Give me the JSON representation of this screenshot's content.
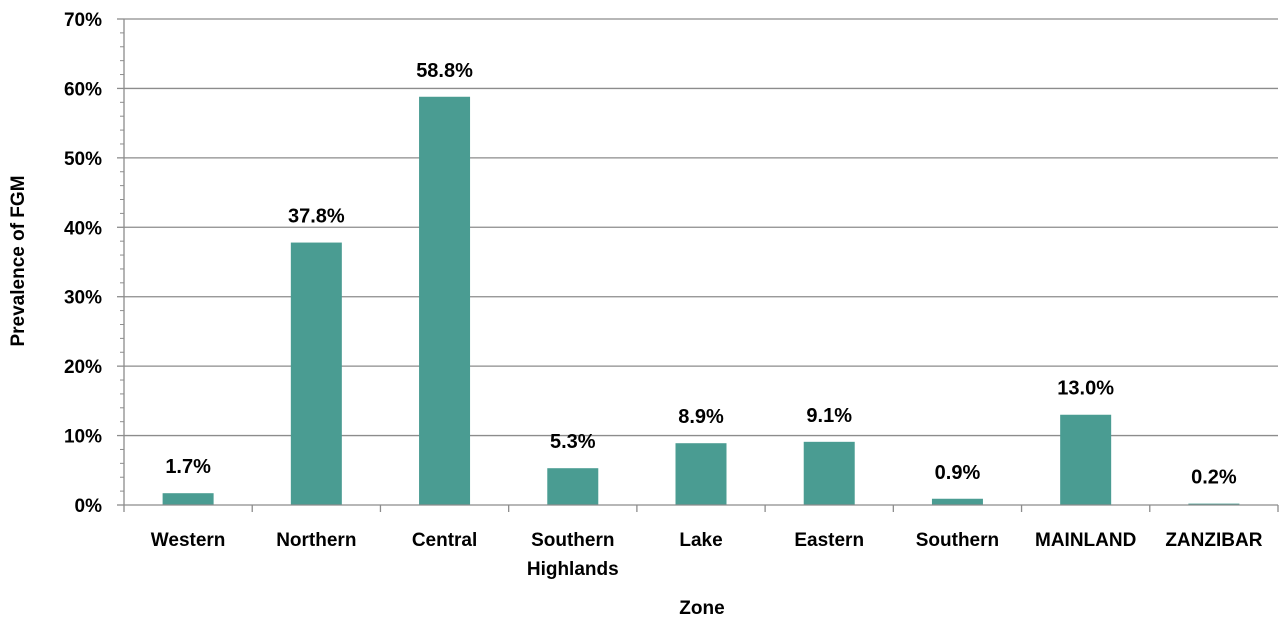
{
  "chart_data": {
    "type": "bar",
    "title": "",
    "xlabel": "Zone",
    "ylabel": "Prevalence of FGM",
    "ylim": [
      0,
      70
    ],
    "yticks": [
      0,
      10,
      20,
      30,
      40,
      50,
      60,
      70
    ],
    "ytick_labels": [
      "0%",
      "10%",
      "20%",
      "30%",
      "40%",
      "50%",
      "60%",
      "70%"
    ],
    "grid": true,
    "legend": "none",
    "bar_color": "#4a9c92",
    "categories": [
      "Western",
      "Northern",
      "Central",
      "Southern Highlands",
      "Lake",
      "Eastern",
      "Southern",
      "MAINLAND",
      "ZANZIBAR"
    ],
    "values": [
      1.7,
      37.8,
      58.8,
      5.3,
      8.9,
      9.1,
      0.9,
      13.0,
      0.2
    ],
    "value_labels": [
      "1.7%",
      "37.8%",
      "58.8%",
      "5.3%",
      "8.9%",
      "9.1%",
      "0.9%",
      "13.0%",
      "0.2%"
    ]
  }
}
